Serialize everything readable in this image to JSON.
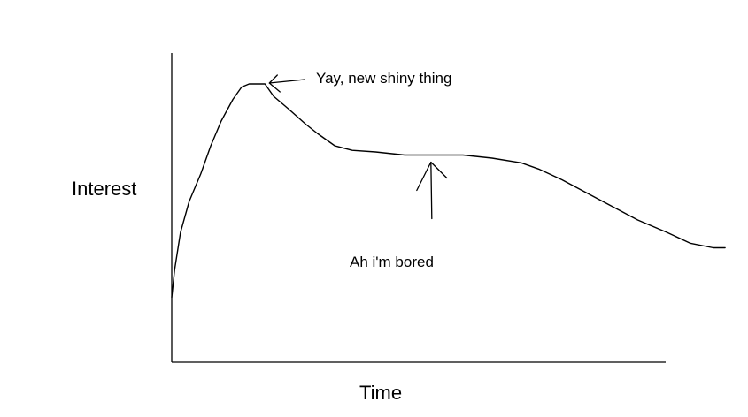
{
  "chart_data": {
    "type": "line",
    "title": "",
    "xlabel": "Time",
    "ylabel": "Interest",
    "grid": false,
    "legend": "none",
    "xlim": [
      0,
      100
    ],
    "ylim": [
      0,
      100
    ],
    "series": [
      {
        "color": "#000000",
        "points": [
          [
            0,
            21
          ],
          [
            0.5,
            30
          ],
          [
            1.5,
            42
          ],
          [
            3,
            52
          ],
          [
            5,
            61
          ],
          [
            6.7,
            70
          ],
          [
            8.5,
            78
          ],
          [
            10.5,
            85
          ],
          [
            12,
            89
          ],
          [
            13.3,
            90
          ],
          [
            16,
            90
          ],
          [
            17.5,
            86
          ],
          [
            20,
            82
          ],
          [
            23,
            77
          ],
          [
            25,
            74
          ],
          [
            28,
            70
          ],
          [
            31,
            68.5
          ],
          [
            35,
            68
          ],
          [
            40,
            67
          ],
          [
            45,
            67
          ],
          [
            50,
            67
          ],
          [
            55,
            66
          ],
          [
            60,
            64.5
          ],
          [
            63,
            62.5
          ],
          [
            67,
            59
          ],
          [
            70,
            56
          ],
          [
            73,
            53
          ],
          [
            76,
            50
          ],
          [
            80,
            46
          ],
          [
            85,
            42
          ],
          [
            89,
            38.5
          ],
          [
            93,
            37
          ],
          [
            95,
            37
          ]
        ]
      }
    ],
    "annotations": [
      {
        "text": "Yay, new shiny thing",
        "x": 16,
        "y": 90
      },
      {
        "text": "Ah i'm bored",
        "x": 44.5,
        "y": 67
      }
    ]
  }
}
